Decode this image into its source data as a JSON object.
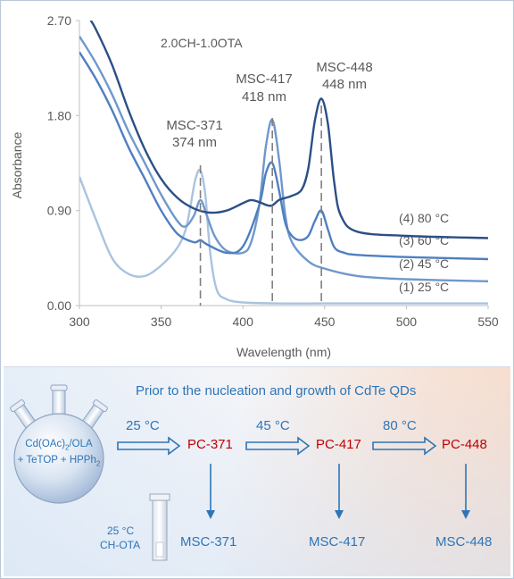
{
  "chart_data": {
    "type": "line",
    "title": "2.0CH-1.0OTA",
    "xlabel": "Wavelength (nm)",
    "ylabel": "Absorbance",
    "xlim": [
      300,
      550
    ],
    "ylim": [
      0,
      2.7
    ],
    "x_ticks": [
      "300",
      "350",
      "400",
      "450",
      "500",
      "550"
    ],
    "y_ticks": [
      "0.00",
      "0.90",
      "1.80",
      "2.70"
    ],
    "grid": "none",
    "series": [
      {
        "name": "(1) 25 °C",
        "color": "#a9c3e0",
        "x": [
          300,
          310,
          320,
          330,
          340,
          350,
          360,
          365,
          368,
          371,
          374,
          377,
          380,
          384,
          390,
          400,
          420,
          450,
          500,
          550
        ],
        "y": [
          1.22,
          0.82,
          0.45,
          0.3,
          0.28,
          0.38,
          0.55,
          0.72,
          0.95,
          1.2,
          1.28,
          1.05,
          0.5,
          0.15,
          0.06,
          0.03,
          0.02,
          0.02,
          0.02,
          0.02
        ]
      },
      {
        "name": "(2) 45 °C",
        "color": "#6f98cc",
        "x": [
          300,
          310,
          320,
          330,
          340,
          350,
          360,
          365,
          370,
          374,
          378,
          383,
          390,
          400,
          405,
          410,
          414,
          418,
          422,
          426,
          430,
          440,
          450,
          470,
          500,
          550
        ],
        "y": [
          2.55,
          2.3,
          2.0,
          1.65,
          1.35,
          1.05,
          0.8,
          0.75,
          0.85,
          1.0,
          0.85,
          0.65,
          0.52,
          0.5,
          0.6,
          0.95,
          1.5,
          1.76,
          1.4,
          0.85,
          0.6,
          0.42,
          0.35,
          0.28,
          0.25,
          0.23
        ]
      },
      {
        "name": "(3) 60 °C",
        "color": "#4f7fbf",
        "x": [
          300,
          310,
          320,
          330,
          340,
          350,
          360,
          370,
          374,
          378,
          390,
          400,
          410,
          414,
          418,
          422,
          426,
          430,
          435,
          440,
          444,
          448,
          452,
          456,
          462,
          470,
          500,
          550
        ],
        "y": [
          2.4,
          2.15,
          1.85,
          1.5,
          1.2,
          0.9,
          0.68,
          0.6,
          0.62,
          0.58,
          0.5,
          0.56,
          0.95,
          1.25,
          1.35,
          1.1,
          0.78,
          0.66,
          0.62,
          0.66,
          0.8,
          0.9,
          0.72,
          0.55,
          0.5,
          0.48,
          0.46,
          0.44
        ]
      },
      {
        "name": "(4) 80 °C",
        "color": "#2b4f86",
        "x": [
          300,
          305,
          310,
          320,
          330,
          340,
          350,
          360,
          370,
          380,
          390,
          400,
          405,
          410,
          415,
          418,
          422,
          426,
          430,
          436,
          440,
          444,
          448,
          452,
          456,
          460,
          470,
          500,
          550
        ],
        "y": [
          2.9,
          2.75,
          2.62,
          2.28,
          1.85,
          1.48,
          1.2,
          1.02,
          0.92,
          0.88,
          0.9,
          0.97,
          1.0,
          0.98,
          0.95,
          0.95,
          1.0,
          1.02,
          1.04,
          1.1,
          1.3,
          1.75,
          1.96,
          1.72,
          1.15,
          0.85,
          0.7,
          0.66,
          0.64
        ]
      }
    ],
    "annotations": [
      {
        "label": "MSC-371",
        "sub": "374 nm",
        "x": 374
      },
      {
        "label": "MSC-417",
        "sub": "418 nm",
        "x": 418
      },
      {
        "label": "MSC-448",
        "sub": "448 nm",
        "x": 448
      }
    ]
  },
  "scheme": {
    "title": "Prior to the nucleation and growth of CdTe QDs",
    "flask_line1": "Cd(OAc)",
    "flask_line1_sub": "2",
    "flask_line1_rest": "/OLA",
    "flask_line2": "+ TeTOP + HPPh",
    "flask_line2_sub": "2",
    "steps": [
      {
        "temp": "25 °C",
        "precursor": "PC-371",
        "product": "MSC-371"
      },
      {
        "temp": "45 °C",
        "precursor": "PC-417",
        "product": "MSC-417"
      },
      {
        "temp": "80 °C",
        "precursor": "PC-448",
        "product": "MSC-448"
      }
    ],
    "cuvette_temp": "25 °C",
    "cuvette_label": "CH-OTA"
  },
  "colors": {
    "accent_blue": "#2e75b6",
    "accent_red": "#c00000",
    "axis": "#595959",
    "ticklabel": "#595959"
  }
}
